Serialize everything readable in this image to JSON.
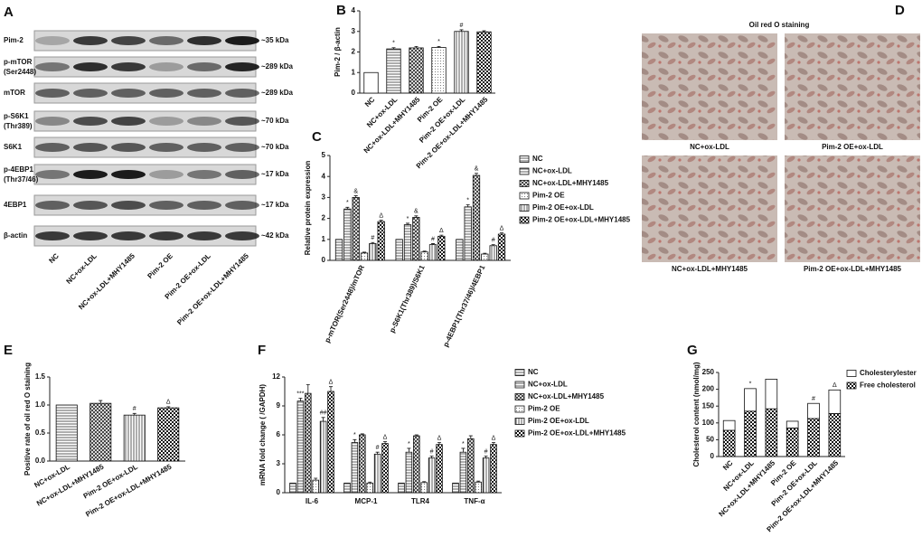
{
  "panel_labels": [
    "A",
    "B",
    "C",
    "D",
    "E",
    "F",
    "G"
  ],
  "blot": {
    "rows": [
      {
        "label": [
          "Pim-2"
        ],
        "size": "~35 kDa"
      },
      {
        "label": [
          "p-mTOR",
          "(Ser2448)"
        ],
        "size": "~289 kDa"
      },
      {
        "label": [
          "mTOR"
        ],
        "size": "~289 kDa"
      },
      {
        "label": [
          "p-S6K1",
          "(Thr389)"
        ],
        "size": "~70 kDa"
      },
      {
        "label": [
          "S6K1"
        ],
        "size": "~70 kDa"
      },
      {
        "label": [
          "p-4EBP1",
          "(Thr37/46)"
        ],
        "size": "~17 kDa"
      },
      {
        "label": [
          "4EBP1"
        ],
        "size": "~17 kDa"
      },
      {
        "label": [
          "β-actin"
        ],
        "size": "~42 kDa"
      }
    ],
    "lanes": [
      "NC",
      "NC+ox-LDL",
      "NC+ox-LDL+MHY1485",
      "Pim-2 OE",
      "Pim-2 OE+ox-LDL",
      "Pim-2 OE+ox-LDL+MHY1485"
    ]
  },
  "staining": {
    "title": "Oil red O staining",
    "images": [
      "NC+ox-LDL",
      "Pim-2 OE+ox-LDL",
      "NC+ox-LDL+MHY1485",
      "Pim-2 OE+ox-LDL+MHY1485"
    ]
  },
  "chart_data": [
    {
      "type": "bar",
      "y_label": "Pim-2 / β-actin",
      "categories": [
        "NC",
        "NC+ox-LDL",
        "NC+ox-LDL+MHY1485",
        "Pim-2 OE",
        "Pim-2 OE+ox-LDL",
        "Pim-2 OE+ox-LDL+MHY1485"
      ],
      "values": [
        1,
        2.15,
        2.2,
        2.22,
        3.0,
        2.98
      ],
      "errors": [
        0,
        0.06,
        0.07,
        0.05,
        0.08,
        0.05
      ],
      "ylim": [
        0,
        4
      ],
      "yticks": [
        0,
        1,
        2,
        3,
        4
      ],
      "annotations": [
        {
          "index": 1,
          "text": "*"
        },
        {
          "index": 3,
          "text": "*"
        },
        {
          "index": 4,
          "text": "#"
        }
      ]
    },
    {
      "type": "bar",
      "y_label": "Relative protein expression",
      "categories": [
        "p-mTOR(Ser2448)/mTOR",
        "p-S6K1(Thr389)/S6K1",
        "p-4EBP1(Thr37/46)/4EBP1"
      ],
      "series": [
        {
          "name": "NC",
          "color": "#ffffff",
          "values": [
            1,
            1,
            1
          ],
          "errors": [
            0,
            0,
            0
          ]
        },
        {
          "name": "NC+ox-LDL",
          "color": "#ffffff",
          "values": [
            2.45,
            1.7,
            2.55
          ],
          "errors": [
            0.08,
            0.07,
            0.1
          ]
        },
        {
          "name": "NC+ox-LDL+MHY1485",
          "color": "#ffffff",
          "values": [
            3.0,
            2.05,
            4.05
          ],
          "errors": [
            0.08,
            0.07,
            0.1
          ]
        },
        {
          "name": "Pim-2 OE",
          "color": "#ffffff",
          "values": [
            0.35,
            0.4,
            0.3
          ],
          "errors": [
            0.04,
            0.04,
            0.04
          ]
        },
        {
          "name": "Pim-2 OE+ox-LDL",
          "color": "#ffffff",
          "values": [
            0.8,
            0.75,
            0.7
          ],
          "errors": [
            0.05,
            0.05,
            0.05
          ]
        },
        {
          "name": "Pim-2 OE+ox-LDL+MHY1485",
          "color": "#ffffff",
          "values": [
            1.85,
            1.15,
            1.25
          ],
          "errors": [
            0.06,
            0.05,
            0.06
          ]
        }
      ],
      "ylim": [
        0,
        5
      ],
      "yticks": [
        0,
        1,
        2,
        3,
        4,
        5
      ],
      "legend": "right",
      "annotations": [
        {
          "series": 1,
          "index": 0,
          "text": "*"
        },
        {
          "series": 2,
          "index": 0,
          "text": "&"
        },
        {
          "series": 4,
          "index": 0,
          "text": "#"
        },
        {
          "series": 5,
          "index": 0,
          "text": "Δ"
        },
        {
          "series": 1,
          "index": 1,
          "text": "*"
        },
        {
          "series": 2,
          "index": 1,
          "text": "&"
        },
        {
          "series": 4,
          "index": 1,
          "text": "#"
        },
        {
          "series": 5,
          "index": 1,
          "text": "Δ"
        },
        {
          "series": 1,
          "index": 2,
          "text": "*"
        },
        {
          "series": 2,
          "index": 2,
          "text": "&"
        },
        {
          "series": 4,
          "index": 2,
          "text": "#"
        },
        {
          "series": 5,
          "index": 2,
          "text": "Δ"
        }
      ]
    },
    {
      "type": "bar",
      "y_label": "Positive rate of oil red O staining",
      "categories": [
        "NC+ox-LDL",
        "NC+ox-LDL+MHY1485",
        "Pim-2 OE+ox-LDL",
        "Pim-2 OE+ox-LDL+MHY1485"
      ],
      "values": [
        1.0,
        1.03,
        0.82,
        0.95
      ],
      "errors": [
        0,
        0.05,
        0.03,
        0.02
      ],
      "ylim": [
        0,
        1.5
      ],
      "yticks": [
        {
          "value": 0,
          "label": "0.0"
        },
        0.5,
        {
          "value": 1,
          "label": "1.0"
        },
        1.5
      ],
      "annotations": [
        {
          "index": 2,
          "text": "#"
        },
        {
          "index": 3,
          "text": "Δ"
        }
      ]
    },
    {
      "type": "bar",
      "y_label": "mRNA fold change ( /GAPDH)",
      "categories": [
        "IL-6",
        "MCP-1",
        "TLR4",
        "TNF-α"
      ],
      "series": [
        {
          "name": "NC",
          "color": "#ffffff",
          "values": [
            1,
            1,
            1,
            1
          ],
          "errors": [
            0,
            0,
            0,
            0
          ]
        },
        {
          "name": "NC+ox-LDL",
          "color": "#ffffff",
          "values": [
            9.5,
            5.2,
            4.2,
            4.2
          ],
          "errors": [
            0.3,
            0.3,
            0.4,
            0.4
          ]
        },
        {
          "name": "NC+ox-LDL+MHY1485",
          "color": "#ffffff",
          "values": [
            10.3,
            6.0,
            5.9,
            5.6
          ],
          "errors": [
            0.9,
            0.1,
            0.1,
            0.3
          ]
        },
        {
          "name": "Pim-2 OE",
          "color": "#ffffff",
          "values": [
            1.3,
            1.0,
            1.05,
            1.1
          ],
          "errors": [
            0.2,
            0.1,
            0.1,
            0.1
          ]
        },
        {
          "name": "Pim-2 OE+ox-LDL",
          "color": "#ffffff",
          "values": [
            7.4,
            4.0,
            3.6,
            3.6
          ],
          "errors": [
            0.4,
            0.2,
            0.2,
            0.2
          ]
        },
        {
          "name": "Pim-2 OE+ox-LDL+MHY1485",
          "color": "#ffffff",
          "values": [
            10.5,
            5.1,
            5.0,
            5.0
          ],
          "errors": [
            0.5,
            0.2,
            0.2,
            0.2
          ]
        }
      ],
      "ylim": [
        0,
        12
      ],
      "yticks": [
        0,
        3,
        6,
        9,
        12
      ],
      "legend": "right",
      "annotations": [
        {
          "series": 1,
          "index": 0,
          "text": "***"
        },
        {
          "series": 4,
          "index": 0,
          "text": "##"
        },
        {
          "series": 5,
          "index": 0,
          "text": "Δ"
        },
        {
          "series": 1,
          "index": 1,
          "text": "*"
        },
        {
          "series": 4,
          "index": 1,
          "text": "#"
        },
        {
          "series": 5,
          "index": 1,
          "text": "Δ"
        },
        {
          "series": 1,
          "index": 2,
          "text": "*"
        },
        {
          "series": 4,
          "index": 2,
          "text": "#"
        },
        {
          "series": 5,
          "index": 2,
          "text": "Δ"
        },
        {
          "series": 1,
          "index": 3,
          "text": "*"
        },
        {
          "series": 4,
          "index": 3,
          "text": "#"
        },
        {
          "series": 5,
          "index": 3,
          "text": "Δ"
        }
      ]
    },
    {
      "type": "bar",
      "stacked": true,
      "y_label": "Cholesterol content (nmol/mg)",
      "categories": [
        "NC",
        "NC+ox-LDL",
        "NC+ox-LDL+MHY1485",
        "Pim-2 OE",
        "Pim-2 OE+ox-LDL",
        "Pim-2 OE+ox-LDL+MHY1485"
      ],
      "series": [
        {
          "name": "Cholesterylester",
          "color": "#ffffff",
          "values": [
            29,
            67,
            88,
            20,
            45,
            70
          ]
        },
        {
          "name": "Free cholesterol",
          "color": "#ffffff",
          "values": [
            78,
            135,
            142,
            85,
            113,
            128
          ]
        }
      ],
      "ylim": [
        0,
        250
      ],
      "yticks": [
        0,
        50,
        100,
        150,
        200,
        250
      ],
      "legend": "top-right",
      "annotations": [
        {
          "index": 1,
          "text": "*"
        },
        {
          "index": 4,
          "text": "#"
        },
        {
          "index": 5,
          "text": "Δ"
        }
      ]
    }
  ]
}
